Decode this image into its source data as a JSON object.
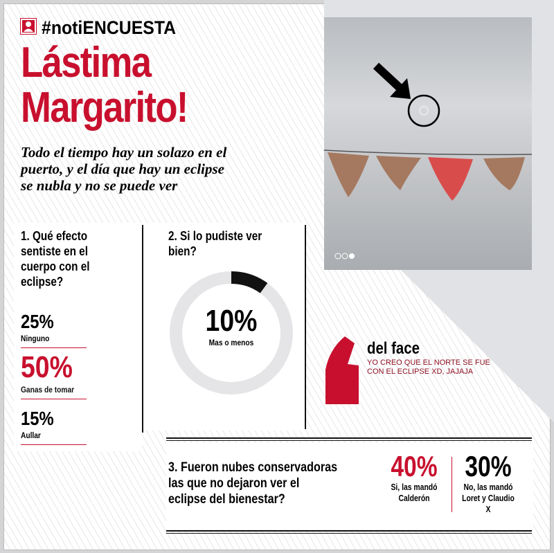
{
  "header": {
    "hashtag": "#notiENCUESTA",
    "icon": "user-icon",
    "title_line1": "Lástima",
    "title_line2": "Margarito!",
    "subtitle": [
      "Todo el tiempo hay un solazo en el",
      "puerto, y el día que hay un eclipse",
      "se nubla y no se puede ver"
    ]
  },
  "colors": {
    "accent": "#c8102e",
    "dark": "#111111",
    "donut_track": "#e5e5e7"
  },
  "q1": {
    "question": [
      "1. Qué efecto",
      "sentiste en el",
      "cuerpo con el",
      "eclipse?"
    ],
    "answers": [
      {
        "value": "25%",
        "label": "Ninguno",
        "highlight": false
      },
      {
        "value": "50%",
        "label": "Ganas de tomar",
        "highlight": true
      },
      {
        "value": "15%",
        "label": "Aullar",
        "highlight": false
      }
    ]
  },
  "q2": {
    "question": [
      "2. Si lo pudiste ver",
      "bien?"
    ],
    "value": "10%",
    "label": "Mas o menos",
    "fraction": 0.1
  },
  "quote": {
    "source": "del face",
    "text": [
      "YO CREO QUE EL NORTE SE FUE",
      "CON EL ECLIPSE XD, JAJAJA"
    ]
  },
  "q3": {
    "question": [
      "3. Fueron nubes conservadoras",
      "las que no dejaron ver el",
      "eclipse del bienestar?"
    ],
    "answers": [
      {
        "value": "40%",
        "label": [
          "Si, las mandó",
          "Calderón"
        ]
      },
      {
        "value": "30%",
        "label": [
          "No, las mandó",
          "Loret y Claudio",
          "X"
        ]
      }
    ]
  }
}
